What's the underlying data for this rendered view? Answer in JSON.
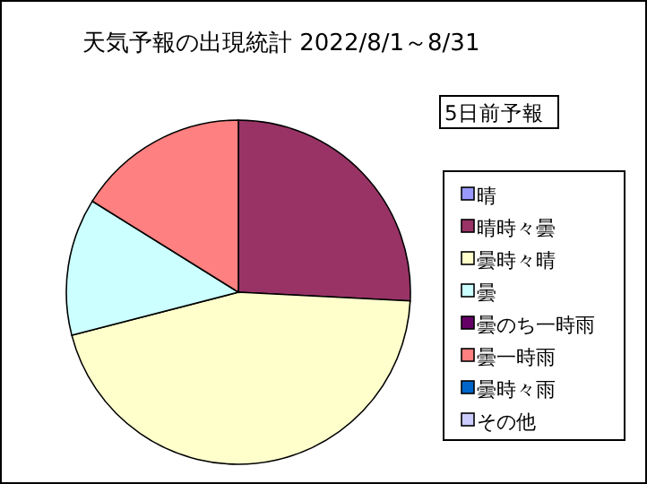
{
  "chart_data": {
    "type": "pie",
    "title": "天気予報の出現統計 2022/8/1～8/31",
    "legend_title": "5日前予報",
    "legend": "right",
    "categories": [
      "晴",
      "晴時々曇",
      "曇時々晴",
      "曇",
      "曇のち一時雨",
      "曇一時雨",
      "曇時々雨",
      "その他"
    ],
    "values": [
      0,
      25.81,
      45.16,
      12.9,
      0,
      16.13,
      0,
      0
    ],
    "colors": [
      "#9999ff",
      "#993366",
      "#ffffcc",
      "#ccffff",
      "#660066",
      "#ff8080",
      "#0066cc",
      "#ccccff"
    ]
  }
}
